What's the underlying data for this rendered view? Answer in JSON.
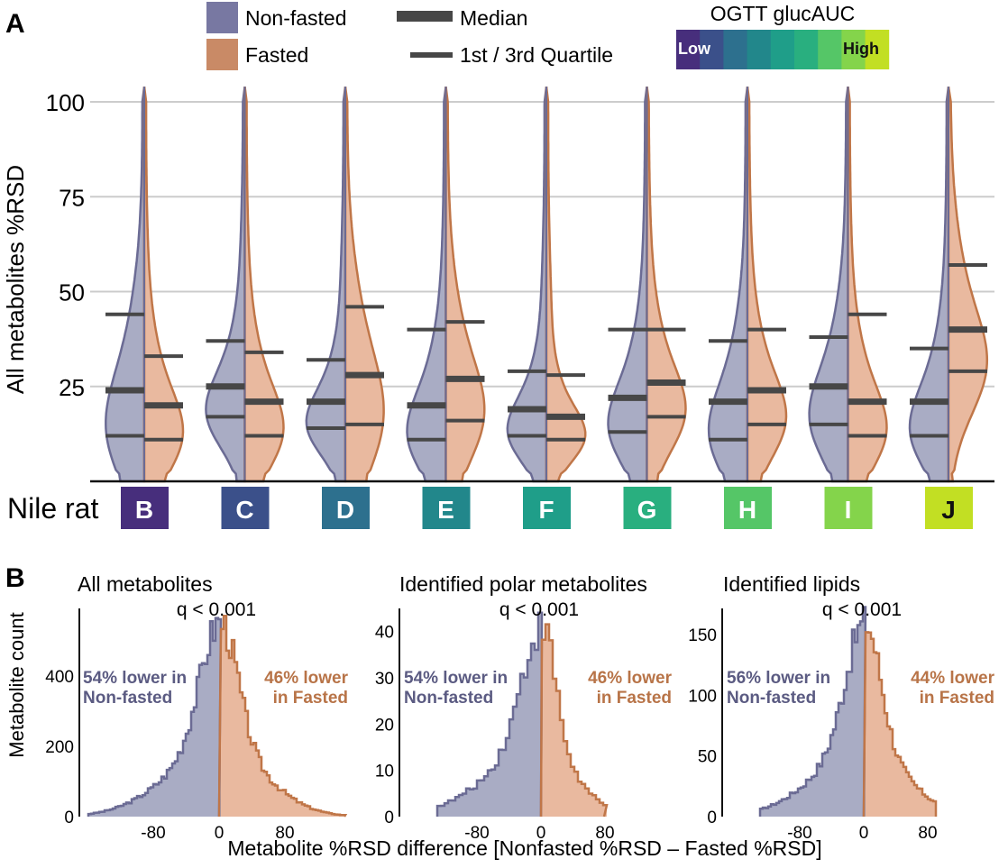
{
  "panels": {
    "a_label": "A",
    "b_label": "B"
  },
  "legend": {
    "nonfasted": {
      "label": "Non-fasted",
      "color": "#7878a2"
    },
    "fasted": {
      "label": "Fasted",
      "color": "#c98a66"
    },
    "median_label": "Median",
    "quartile_label": "1st / 3rd Quartile",
    "colorbar": {
      "title": "OGTT glucAUC",
      "low_label": "Low",
      "high_label": "High",
      "colors": [
        "#472e7c",
        "#3b508a",
        "#2d708e",
        "#22878b",
        "#1f9e89",
        "#29af7f",
        "#55c667",
        "#84d44b",
        "#c2df23"
      ]
    }
  },
  "violin_chart": {
    "ylabel": "All metabolites %RSD",
    "xlabel": "Nile rat",
    "ylim": [
      0,
      100
    ],
    "yticks": [
      "25",
      "50",
      "75",
      "100"
    ],
    "rats": [
      {
        "id": "B",
        "color": "#472e7c"
      },
      {
        "id": "C",
        "color": "#3b508a"
      },
      {
        "id": "D",
        "color": "#2d708e"
      },
      {
        "id": "E",
        "color": "#22878b"
      },
      {
        "id": "F",
        "color": "#1f9e89"
      },
      {
        "id": "G",
        "color": "#29af7f"
      },
      {
        "id": "H",
        "color": "#55c667"
      },
      {
        "id": "I",
        "color": "#84d44b"
      },
      {
        "id": "J",
        "color": "#c2df23"
      }
    ]
  },
  "chart_data": [
    {
      "type": "violin",
      "title": "",
      "ylabel": "All metabolites %RSD",
      "xlabel": "Nile rat",
      "categories": [
        "B",
        "C",
        "D",
        "E",
        "F",
        "G",
        "H",
        "I",
        "J"
      ],
      "series": [
        {
          "name": "Non-fasted",
          "q1": [
            12,
            17,
            14,
            11,
            12,
            13,
            11,
            15,
            12
          ],
          "median": [
            24,
            25,
            21,
            20,
            19,
            22,
            21,
            25,
            21
          ],
          "q3": [
            44,
            37,
            32,
            40,
            29,
            40,
            37,
            38,
            35
          ]
        },
        {
          "name": "Fasted",
          "q1": [
            11,
            12,
            15,
            16,
            11,
            17,
            15,
            12,
            29
          ],
          "median": [
            20,
            21,
            28,
            27,
            17,
            26,
            24,
            21,
            40
          ],
          "q3": [
            33,
            34,
            46,
            42,
            28,
            40,
            40,
            44,
            57
          ]
        }
      ]
    },
    {
      "type": "histogram",
      "title": "All metabolites",
      "annotation": "q < 0.001",
      "xlabel": "Metabolite %RSD difference  [Nonfasted %RSD – Fasted %RSD]",
      "ylabel": "Metabolite count",
      "xticks": [
        "-80",
        "0",
        "80"
      ],
      "yticks": [
        "0",
        "200",
        "400"
      ],
      "ylim": [
        0,
        580
      ],
      "xlim": [
        -165,
        165
      ],
      "left_text": [
        "54% lower in",
        "Non-fasted"
      ],
      "right_text": [
        "46% lower",
        "in Fasted"
      ]
    },
    {
      "type": "histogram",
      "title": "Identified polar metabolites",
      "annotation": "q < 0.001",
      "yticks": [
        "0",
        "10",
        "20",
        "30",
        "40"
      ],
      "xticks": [
        "-80",
        "0",
        "80"
      ],
      "ylim": [
        0,
        44
      ],
      "xlim": [
        -135,
        165
      ],
      "left_text": [
        "54% lower in",
        "Non-fasted"
      ],
      "right_text": [
        "46% lower",
        "in Fasted"
      ]
    },
    {
      "type": "histogram",
      "title": "Identified lipids",
      "annotation": "q < 0.001",
      "yticks": [
        "0",
        "50",
        "100",
        "150"
      ],
      "xticks": [
        "-80",
        "0",
        "80"
      ],
      "ylim": [
        0,
        168
      ],
      "xlim": [
        -135,
        165
      ],
      "left_text": [
        "56% lower in",
        "Non-fasted"
      ],
      "right_text": [
        "44% lower",
        "in Fasted"
      ]
    }
  ]
}
